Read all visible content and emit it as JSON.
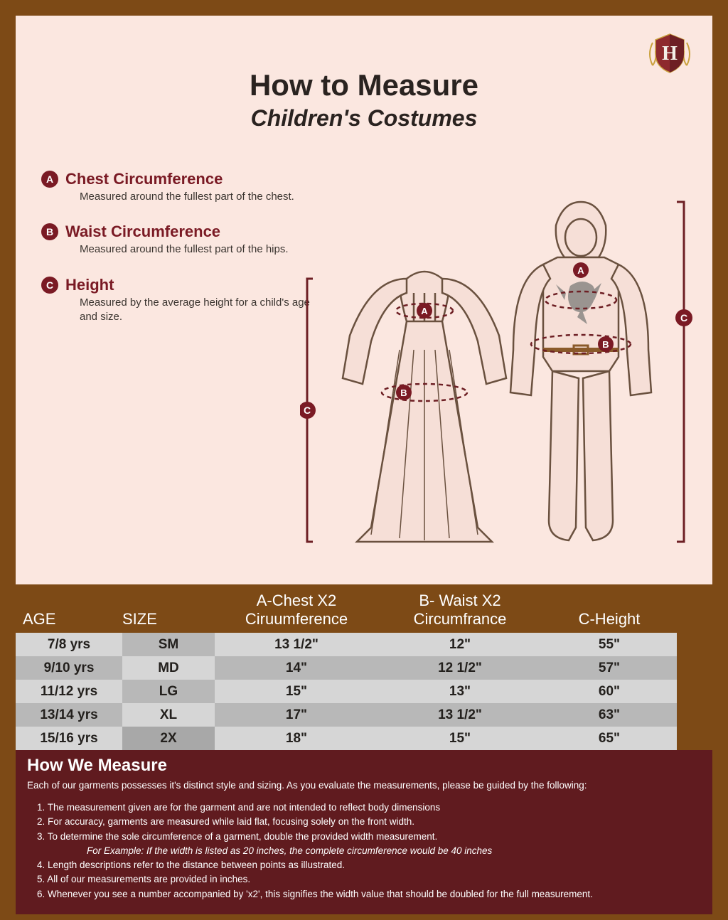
{
  "colors": {
    "outer_border": "#7d4a16",
    "panel_bg": "#fbe7e0",
    "accent": "#7a1a24",
    "footer_bg": "#601b1f",
    "row_light": "#d6d6d6",
    "row_mid": "#b8b8b8",
    "row_dark": "#a8a8a8",
    "text_dark": "#2a2320"
  },
  "logo_letter": "H",
  "title": "How to Measure",
  "subtitle": "Children's Costumes",
  "definitions": [
    {
      "badge": "A",
      "label": "Chest Circumference",
      "desc": "Measured around the fullest part of the chest."
    },
    {
      "badge": "B",
      "label": "Waist Circumference",
      "desc": "Measured around the fullest part of the hips."
    },
    {
      "badge": "C",
      "label": "Height",
      "desc": "Measured by the average height for a child's age and size."
    }
  ],
  "diagram": {
    "markers": [
      "A",
      "B",
      "C",
      "A",
      "B",
      "C"
    ]
  },
  "table": {
    "headers": {
      "age": "AGE",
      "size": "SIZE",
      "chest_l1": "A-Chest  X2",
      "chest_l2": "Ciruumference",
      "waist_l1": "B- Waist  X2",
      "waist_l2": "Circumfrance",
      "height": "C-Height"
    },
    "rows": [
      {
        "age": "7/8 yrs",
        "size": "SM",
        "chest": "13 1/2\"",
        "waist": "12\"",
        "height": "55\""
      },
      {
        "age": "9/10 yrs",
        "size": "MD",
        "chest": "14\"",
        "waist": "12 1/2\"",
        "height": "57\""
      },
      {
        "age": "11/12 yrs",
        "size": "LG",
        "chest": "15\"",
        "waist": "13\"",
        "height": "60\""
      },
      {
        "age": "13/14 yrs",
        "size": "XL",
        "chest": "17\"",
        "waist": "13 1/2\"",
        "height": "63\""
      },
      {
        "age": "15/16 yrs",
        "size": "2X",
        "chest": "18\"",
        "waist": "15\"",
        "height": "65\""
      }
    ],
    "row_bg_pattern": [
      [
        "#d6d6d6",
        "#b8b8b8",
        "#d6d6d6",
        "#d6d6d6",
        "#d6d6d6"
      ],
      [
        "#b8b8b8",
        "#d6d6d6",
        "#b8b8b8",
        "#b8b8b8",
        "#b8b8b8"
      ],
      [
        "#d6d6d6",
        "#b8b8b8",
        "#d6d6d6",
        "#d6d6d6",
        "#d6d6d6"
      ],
      [
        "#b8b8b8",
        "#d6d6d6",
        "#b8b8b8",
        "#b8b8b8",
        "#b8b8b8"
      ],
      [
        "#d6d6d6",
        "#a8a8a8",
        "#d6d6d6",
        "#d6d6d6",
        "#d6d6d6"
      ]
    ]
  },
  "footer": {
    "title": "How We Measure",
    "intro": "Each of our garments possesses it's distinct style and sizing. As you evaluate the measurements, please be guided by the following:",
    "items": [
      "1. The measurement given are for the garment and are not intended to reflect body dimensions",
      "2. For accuracy, garments are measured while laid flat, focusing solely on the front width.",
      "3. To determine the sole circumference of a garment, double the provided width measurement.",
      "4. Length descriptions refer to the distance between points as illustrated.",
      "5. All of our measurements are provided in inches.",
      "6. Whenever you see a number accompanied by  'x2', this signifies the width value that should be doubled for the full measurement."
    ],
    "example": "For Example: If the width is listed as 20 inches, the complete circumference would be 40 inches"
  }
}
